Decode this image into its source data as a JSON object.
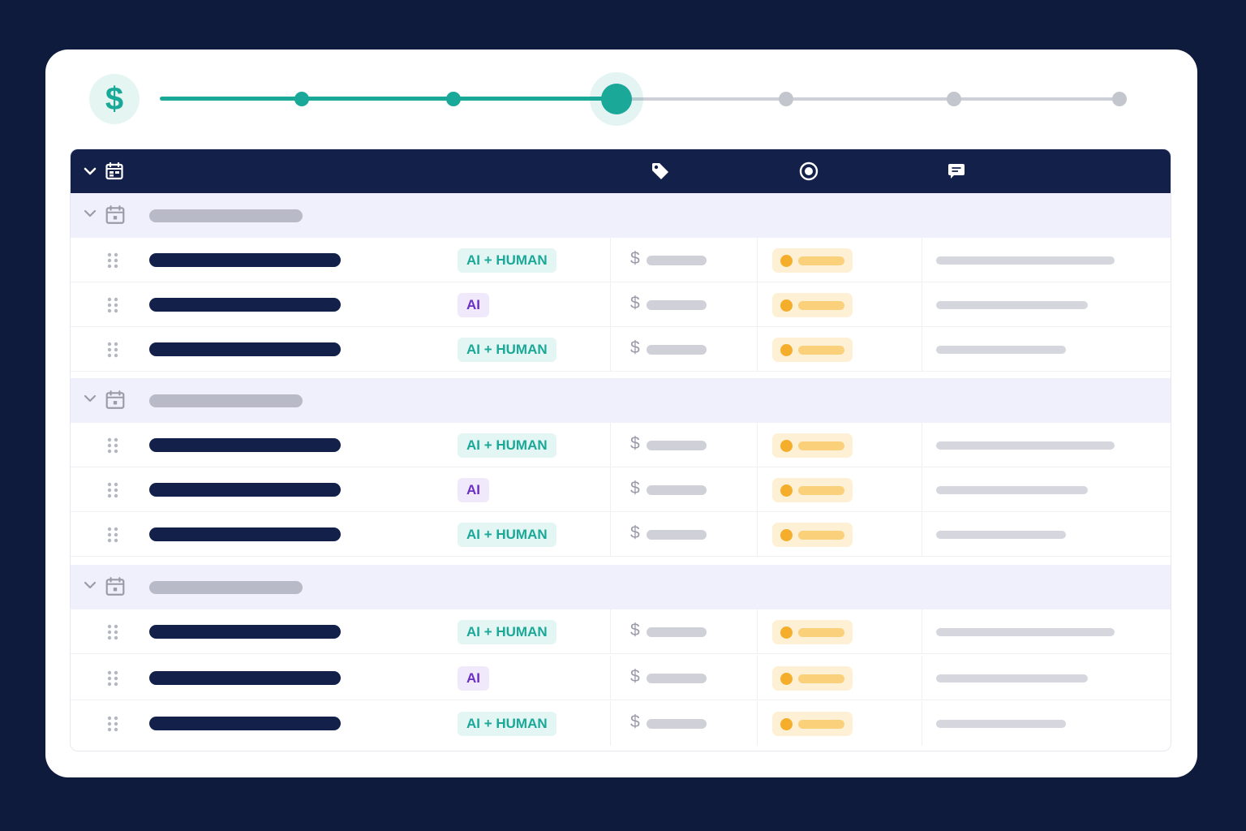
{
  "stepper": {
    "badge_icon": "dollar-sign-icon",
    "badge_symbol": "$",
    "steps_total": 7,
    "current_step": 4,
    "accent_color": "#1aa898",
    "inactive_color": "#c4c6ce"
  },
  "table": {
    "header_icons": [
      "chevron-down-icon",
      "calendar-icon",
      "tag-icon",
      "status-target-icon",
      "comment-icon"
    ],
    "header_background": "#13204a",
    "groups": [
      {
        "rows": [
          {
            "tag": "AI + HUMAN",
            "tag_kind": "ai-human",
            "currency": "$"
          },
          {
            "tag": "AI",
            "tag_kind": "ai",
            "currency": "$"
          },
          {
            "tag": "AI + HUMAN",
            "tag_kind": "ai-human",
            "currency": "$"
          }
        ]
      },
      {
        "rows": [
          {
            "tag": "AI + HUMAN",
            "tag_kind": "ai-human",
            "currency": "$"
          },
          {
            "tag": "AI",
            "tag_kind": "ai",
            "currency": "$"
          },
          {
            "tag": "AI + HUMAN",
            "tag_kind": "ai-human",
            "currency": "$"
          }
        ]
      },
      {
        "rows": [
          {
            "tag": "AI + HUMAN",
            "tag_kind": "ai-human",
            "currency": "$"
          },
          {
            "tag": "AI",
            "tag_kind": "ai",
            "currency": "$"
          },
          {
            "tag": "AI + HUMAN",
            "tag_kind": "ai-human",
            "currency": "$"
          }
        ]
      }
    ]
  }
}
